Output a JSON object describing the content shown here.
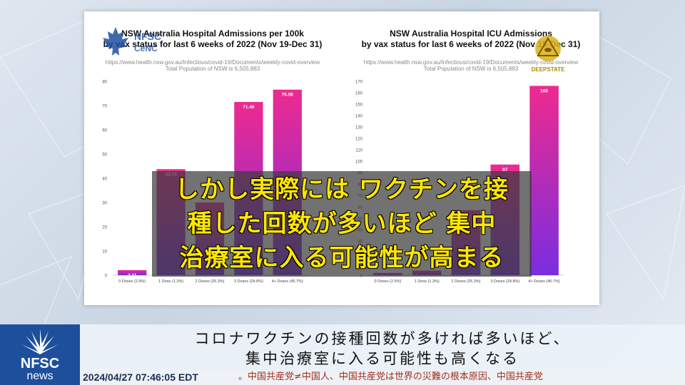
{
  "panel": {
    "left_chart": {
      "title_line1": "NSW Australia Hospital Admissions per 100k",
      "title_line2": "by vax status for last 6 weeks of 2022 (Nov 19-Dec 31)",
      "source_url": "https://www.health.nsw.gov.au/Infectious/covid-19/Documents/weekly-covid-overview",
      "population_note": "Total Population of NSW is 6,505,883"
    },
    "right_chart": {
      "title_line1": "NSW Australia Hospital ICU Admissions",
      "title_line2": "by vax status for last 6 weeks of 2022 (Nov 19-Dec 31)",
      "source_url": "https://www.health.nsw.gov.au/Infectious/covid-19/Documents/weekly-covid-overview",
      "population_note": "Total Population of NSW is 6,505,883"
    }
  },
  "chart_data": [
    {
      "type": "bar",
      "title": "NSW Australia Hospital Admissions per 100k by vax status for last 6 weeks of 2022 (Nov 19-Dec 31)",
      "categories": [
        "0 Doses (2.9%)",
        "1 Dose (1.3%)",
        "2 Doses (25.3%)",
        "3 Doses (24.8%)",
        "4+ Doses (45.7%)"
      ],
      "values": [
        2.11,
        43.74,
        30,
        71.46,
        76.55
      ],
      "data_labels": [
        "2.11",
        "43.74",
        "",
        "71.46",
        "76.55"
      ],
      "ylim": [
        0,
        80
      ],
      "yticks": [
        0,
        10,
        20,
        30,
        40,
        50,
        60,
        70,
        80
      ],
      "grid": false,
      "bar_color_top": "#ee2a8f",
      "bar_color_bottom": "#7a2de0"
    },
    {
      "type": "bar",
      "title": "NSW Australia Hospital ICU Admissions by vax status for last 6 weeks of 2022 (Nov 19-Dec 31)",
      "categories": [
        "0 Doses (2.9%)",
        "1 Dose (1.3%)",
        "2 Doses (25.3%)",
        "3 Doses (24.8%)",
        "4+ Doses (45.7%)"
      ],
      "values": [
        2,
        4,
        57,
        97,
        166
      ],
      "data_labels": [
        "",
        "",
        "57",
        "97",
        "166"
      ],
      "ylim": [
        0,
        170
      ],
      "yticks": [
        0,
        10,
        20,
        30,
        40,
        50,
        60,
        70,
        80,
        90,
        100,
        110,
        120,
        130,
        140,
        150,
        160,
        170
      ],
      "grid": false,
      "bar_color_top": "#ee2a8f",
      "bar_color_bottom": "#7a2de0"
    }
  ],
  "overlay_subtitle": {
    "line1": "しかし実際には ワクチンを接",
    "line2": "種した回数が多いほど 集中",
    "line3": "治療室に入る可能性が高まる",
    "color": "#ffe600"
  },
  "logos": {
    "left_logo_text": "NFSC CeNC",
    "left_logo_icon": "maple-leaf-icon",
    "right_logo_text": "DEEPSTATE",
    "right_logo_icon": "pyramid-eye-icon"
  },
  "news_bar": {
    "brand_line1": "NFSC",
    "brand_line2": "news",
    "logo_icon": "peacock-fan-icon",
    "brand_color": "#1d4f9c",
    "caption_line1": "コロナワクチンの接種回数が多ければ多いほど、",
    "caption_line2": "集中治療室に入る可能性も高くなる",
    "timestamp": "2024/04/27 07:46:05 EDT",
    "ticker_text": "。中国共産党≠中国人、中国共産党は世界の災難の根本原因、中国共産党"
  }
}
